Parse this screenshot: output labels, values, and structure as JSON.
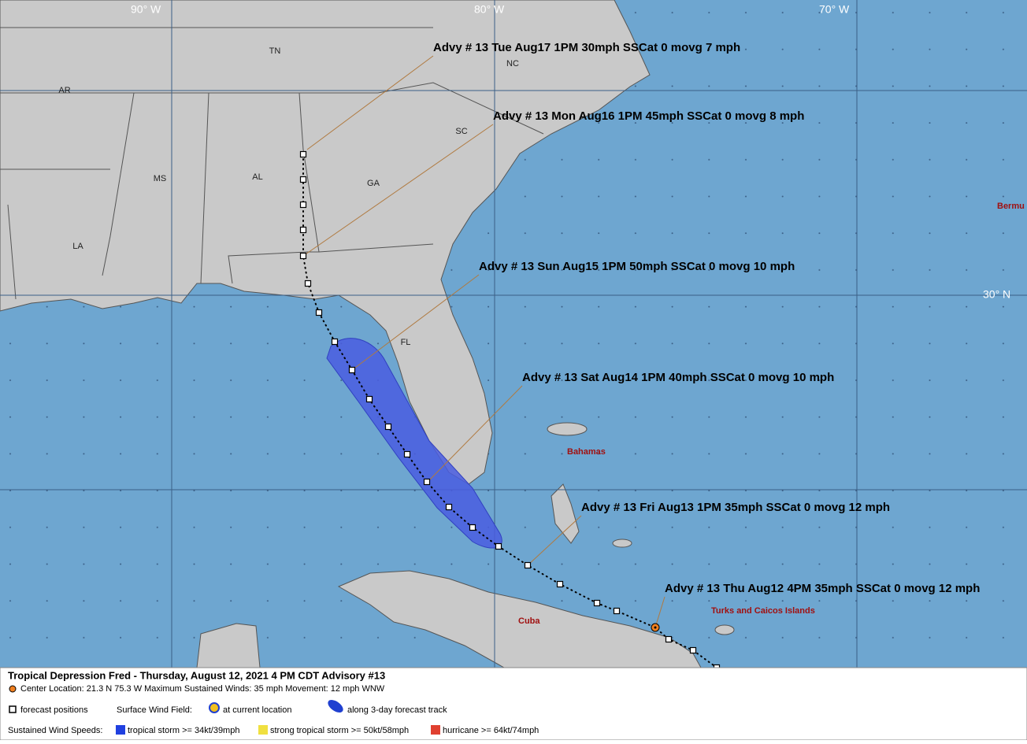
{
  "map": {
    "graticule": [
      "90° W",
      "80° W",
      "70° W",
      "30° N"
    ],
    "states": [
      "TN",
      "NC",
      "AR",
      "SC",
      "MS",
      "AL",
      "GA",
      "LA",
      "FL"
    ],
    "places": [
      "Bermu",
      "Bahamas",
      "Cuba",
      "Turks and Caicos Islands"
    ],
    "advisories": [
      "Advy # 13 Tue Aug17 1PM  30mph SSCat 0 movg 7 mph",
      "Advy # 13 Mon Aug16 1PM  45mph SSCat 0 movg 8 mph",
      "Advy # 13 Sun Aug15 1PM  50mph SSCat 0 movg 10 mph",
      "Advy # 13 Sat Aug14 1PM  40mph SSCat 0 movg 10 mph",
      "Advy # 13 Fri Aug13 1PM  35mph SSCat 0 movg 12 mph",
      "Advy # 13 Thu Aug12 4PM  35mph SSCat 0 movg 12 mph"
    ]
  },
  "footer": {
    "title": "Tropical Depression Fred  -  Thursday, August 12, 2021  4 PM CDT   Advisory #13",
    "center": "Center Location: 21.3 N  75.3 W   Maximum Sustained Winds: 35 mph   Movement: 12 mph WNW",
    "forecast_positions": "forecast positions",
    "wind_field": "Surface Wind Field:",
    "current": "at current location",
    "track": "along 3-day forecast track",
    "speeds": "Sustained Wind Speeds:",
    "ts": "tropical storm >= 34kt/39mph",
    "sts": "strong tropical storm >= 50kt/58mph",
    "hu": "hurricane >= 64kt/74mph"
  }
}
